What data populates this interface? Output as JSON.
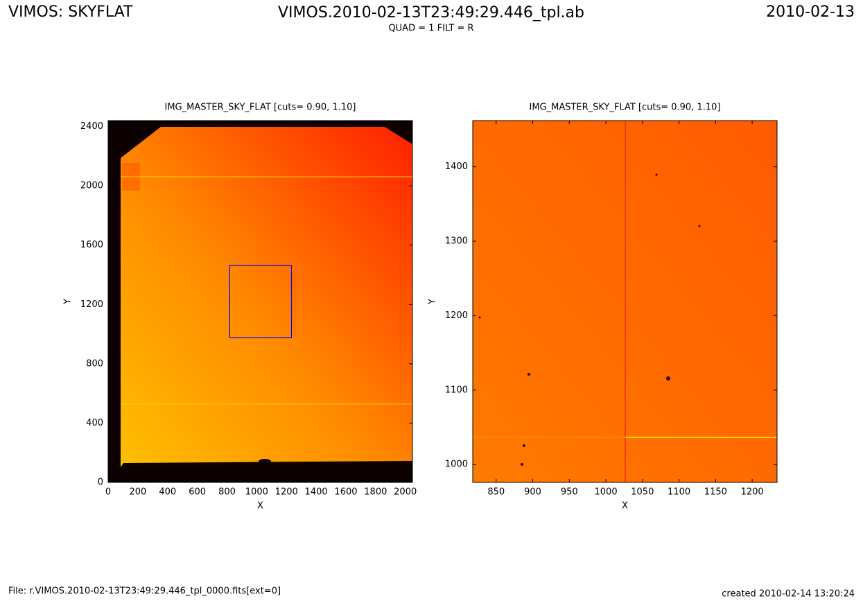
{
  "header": {
    "left": "VIMOS: SKYFLAT",
    "center": "VIMOS.2010-02-13T23:49:29.446_tpl.ab",
    "subtitle": "QUAD = 1 FILT = R",
    "right": "2010-02-13"
  },
  "footer": {
    "left": "File: r.VIMOS.2010-02-13T23:49:29.446_tpl_0000.fits[ext=0]",
    "right": "created 2010-02-14 13:20:24"
  },
  "chart_data": [
    {
      "type": "image",
      "title": "IMG_MASTER_SKY_FLAT [cuts= 0.90, 1.10]",
      "xlabel": "X",
      "ylabel": "Y",
      "xlim": [
        0,
        2048
      ],
      "ylim": [
        0,
        2440
      ],
      "xticks": [
        0,
        200,
        400,
        600,
        800,
        1000,
        1200,
        1400,
        1600,
        1800,
        2000
      ],
      "yticks": [
        0,
        400,
        800,
        1200,
        1600,
        2000,
        2400
      ],
      "box_color": "#0000ff"
    },
    {
      "type": "image",
      "title": "IMG_MASTER_SKY_FLAT [cuts= 0.90, 1.10]",
      "xlabel": "X",
      "ylabel": "Y",
      "xlim": [
        818,
        1234
      ],
      "ylim": [
        976,
        1462
      ],
      "xticks": [
        850,
        900,
        950,
        1000,
        1050,
        1100,
        1150,
        1200
      ],
      "yticks": [
        1000,
        1100,
        1200,
        1300,
        1400
      ]
    }
  ]
}
